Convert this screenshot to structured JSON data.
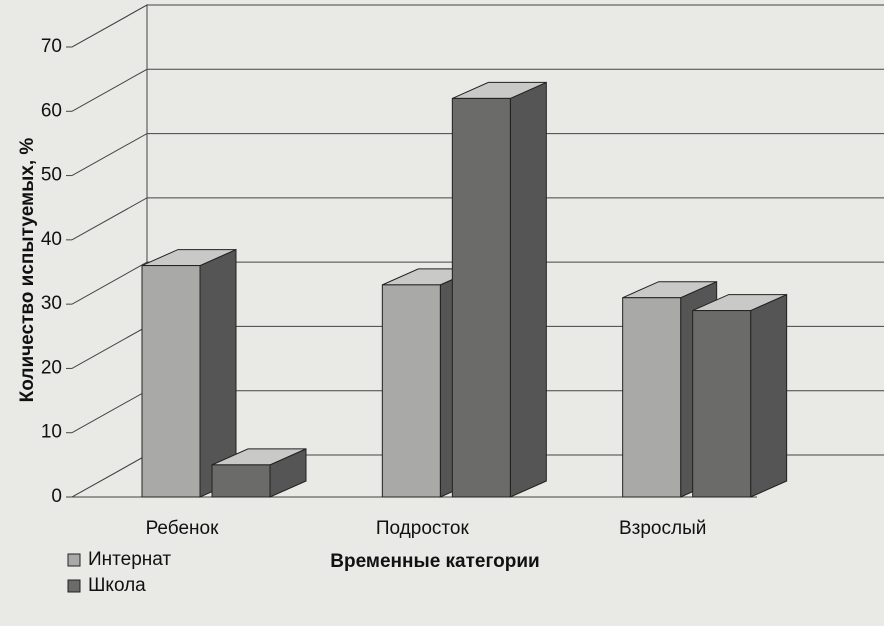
{
  "chart_data": {
    "type": "bar3d",
    "y_label": "Количество испытуемых, %",
    "x_label": "Временные категории",
    "categories": [
      "Ребенок",
      "Подросток",
      "Взрослый"
    ],
    "series": [
      {
        "name": "Интернат",
        "color": "#a9a9a7",
        "values": [
          36,
          33,
          31
        ]
      },
      {
        "name": "Школа",
        "color": "#6b6b69",
        "values": [
          5,
          62,
          29
        ]
      }
    ],
    "ylim": [
      0,
      70
    ],
    "yticks": [
      0,
      10,
      20,
      30,
      40,
      50,
      60,
      70
    ],
    "grid": true
  }
}
